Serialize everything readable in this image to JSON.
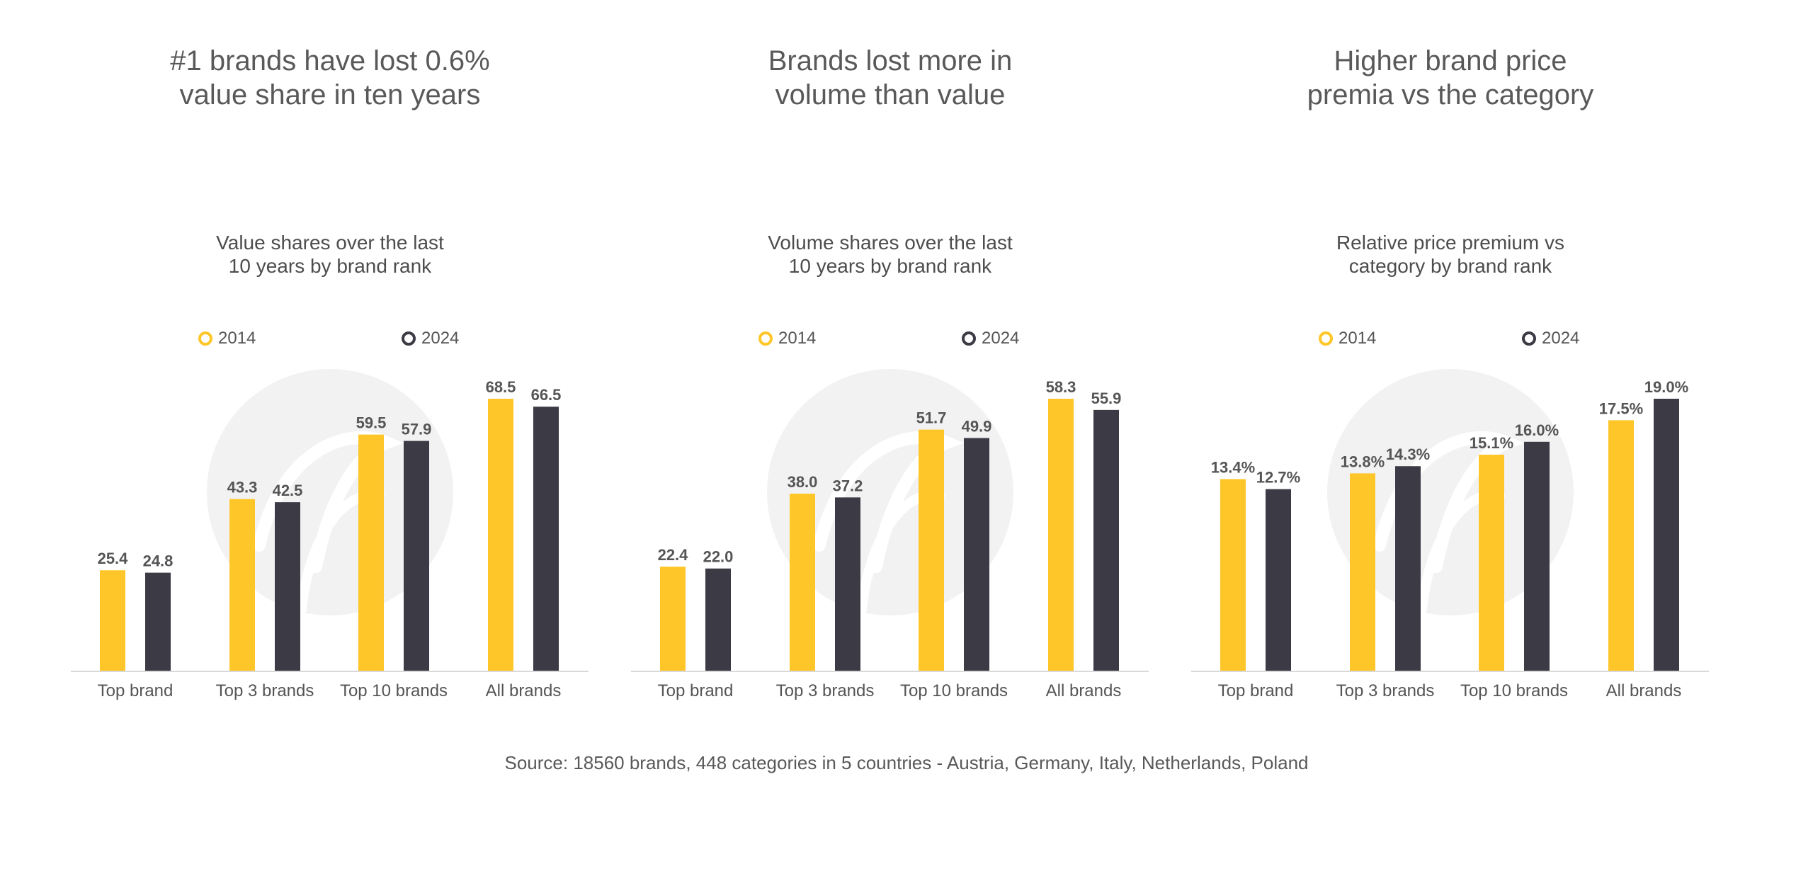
{
  "colors": {
    "series_2014": "#FFC629",
    "series_2024": "#3B3A45",
    "text": "#555555",
    "axis": "#d9d9d9"
  },
  "legend": {
    "item_2014": "2014",
    "item_2024": "2024"
  },
  "footer": {
    "source": "Source: 18560 brands, 448 categories in 5 countries - Austria, Germany, Italy, Netherlands, Poland"
  },
  "chart_data": [
    {
      "type": "bar",
      "panel_title": "#1 brands have lost 0.6%\nvalue share in ten years",
      "title": "Value shares over the last\n10 years by brand rank",
      "categories": [
        "Top brand",
        "Top 3 brands",
        "Top 10 brands",
        "All brands"
      ],
      "series": [
        {
          "name": "2014",
          "values": [
            25.4,
            43.3,
            59.5,
            68.5
          ],
          "labels": [
            "25.4",
            "43.3",
            "59.5",
            "68.5"
          ]
        },
        {
          "name": "2024",
          "values": [
            24.8,
            42.5,
            57.9,
            66.5
          ],
          "labels": [
            "24.8",
            "42.5",
            "57.9",
            "66.5"
          ]
        }
      ],
      "ylim": [
        0,
        68.5
      ],
      "legend_position": "top",
      "grid": false
    },
    {
      "type": "bar",
      "panel_title": "Brands lost more in\nvolume than value",
      "title": "Volume shares over the last\n10 years by brand rank",
      "categories": [
        "Top brand",
        "Top 3 brands",
        "Top 10 brands",
        "All brands"
      ],
      "series": [
        {
          "name": "2014",
          "values": [
            22.4,
            38.0,
            51.7,
            58.3
          ],
          "labels": [
            "22.4",
            "38.0",
            "51.7",
            "58.3"
          ]
        },
        {
          "name": "2024",
          "values": [
            22.0,
            37.2,
            49.9,
            55.9
          ],
          "labels": [
            "22.0",
            "37.2",
            "49.9",
            "55.9"
          ]
        }
      ],
      "ylim": [
        0,
        58.3
      ],
      "legend_position": "top",
      "grid": false
    },
    {
      "type": "bar",
      "panel_title": "Higher brand price\npremia vs the category",
      "title": "Relative price premium vs\ncategory by brand rank",
      "categories": [
        "Top brand",
        "Top 3 brands",
        "Top 10 brands",
        "All brands"
      ],
      "series": [
        {
          "name": "2014",
          "values": [
            13.4,
            13.8,
            15.1,
            17.5
          ],
          "labels": [
            "13.4%",
            "13.8%",
            "15.1%",
            "17.5%"
          ]
        },
        {
          "name": "2024",
          "values": [
            12.7,
            14.3,
            16.0,
            19.0
          ],
          "labels": [
            "12.7%",
            "14.3%",
            "16.0%",
            "19.0%"
          ]
        }
      ],
      "ylim": [
        0,
        19.0
      ],
      "legend_position": "top",
      "grid": false
    }
  ]
}
